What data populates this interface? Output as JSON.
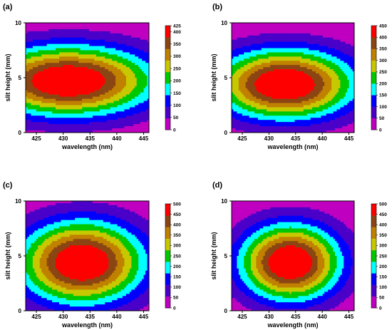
{
  "figure": {
    "panels": [
      {
        "label": "(a)",
        "color_max": 425,
        "color_ticks": [
          0,
          50,
          100,
          150,
          200,
          250,
          300,
          350,
          400,
          425
        ]
      },
      {
        "label": "(b)",
        "color_max": 450,
        "color_ticks": [
          0,
          50,
          100,
          150,
          200,
          250,
          300,
          350,
          400,
          450
        ]
      },
      {
        "label": "(c)",
        "color_max": 500,
        "color_ticks": [
          0,
          50,
          100,
          150,
          200,
          250,
          300,
          350,
          400,
          450,
          500
        ]
      },
      {
        "label": "(d)",
        "color_max": 500,
        "color_ticks": [
          0,
          50,
          100,
          150,
          200,
          250,
          300,
          350,
          400,
          450,
          500
        ]
      }
    ]
  },
  "chart_data": [
    {
      "type": "heatmap",
      "panel": "(a)",
      "xlabel": "wavelength (nm)",
      "ylabel": "slit height (mm)",
      "x_ticks": [
        425,
        430,
        435,
        440,
        445
      ],
      "y_ticks": [
        0,
        5,
        10
      ],
      "xlim": [
        423,
        446
      ],
      "ylim": [
        0,
        10
      ],
      "colorbar_ticks": [
        0,
        50,
        100,
        150,
        200,
        250,
        300,
        350,
        400,
        425
      ],
      "colorbar_range": [
        0,
        425
      ],
      "colors": [
        "#c000c0",
        "#4a00c8",
        "#0000ff",
        "#00ffff",
        "#00c800",
        "#c8c800",
        "#c08000",
        "#8b4513",
        "#ff0000"
      ],
      "peak": {
        "wavelength_nm": 431,
        "slit_height_mm": 4.7,
        "value": 425
      },
      "spread": {
        "wavelength_nm": 11,
        "slit_height_mm": 2.2
      }
    },
    {
      "type": "heatmap",
      "panel": "(b)",
      "xlabel": "wavelength (nm)",
      "ylabel": "slit height (mm)",
      "x_ticks": [
        425,
        430,
        435,
        440,
        445
      ],
      "y_ticks": [
        0,
        5,
        10
      ],
      "xlim": [
        423,
        446
      ],
      "ylim": [
        0,
        10
      ],
      "colorbar_ticks": [
        0,
        50,
        100,
        150,
        200,
        250,
        300,
        350,
        400,
        450
      ],
      "colorbar_range": [
        0,
        450
      ],
      "colors": [
        "#c000c0",
        "#4a00c8",
        "#0000ff",
        "#00ffff",
        "#00c800",
        "#c8c800",
        "#c08000",
        "#8b4513",
        "#ff0000"
      ],
      "peak": {
        "wavelength_nm": 433,
        "slit_height_mm": 4.4,
        "value": 450
      },
      "spread": {
        "wavelength_nm": 9,
        "slit_height_mm": 2.2
      }
    },
    {
      "type": "heatmap",
      "panel": "(c)",
      "xlabel": "wavelength (nm)",
      "ylabel": "slit height (mm)",
      "x_ticks": [
        425,
        430,
        435,
        440,
        445
      ],
      "y_ticks": [
        0,
        5,
        10
      ],
      "xlim": [
        423,
        446
      ],
      "ylim": [
        0,
        10
      ],
      "colorbar_ticks": [
        0,
        50,
        100,
        150,
        200,
        250,
        300,
        350,
        400,
        450,
        500
      ],
      "colorbar_range": [
        0,
        500
      ],
      "colors": [
        "#c000c0",
        "#4a00c8",
        "#0000ff",
        "#00ffff",
        "#00c800",
        "#c8c800",
        "#c08000",
        "#8b4513",
        "#ff0000"
      ],
      "peak": {
        "wavelength_nm": 433.5,
        "slit_height_mm": 4.4,
        "value": 500
      },
      "spread": {
        "wavelength_nm": 8,
        "slit_height_mm": 2.6
      }
    },
    {
      "type": "heatmap",
      "panel": "(d)",
      "xlabel": "wavelength (nm)",
      "ylabel": "slit height (mm)",
      "x_ticks": [
        425,
        430,
        435,
        440,
        445
      ],
      "y_ticks": [
        0,
        5,
        10
      ],
      "xlim": [
        423,
        446
      ],
      "ylim": [
        0,
        10
      ],
      "colorbar_ticks": [
        0,
        50,
        100,
        150,
        200,
        250,
        300,
        350,
        400,
        450,
        500
      ],
      "colorbar_range": [
        0,
        500
      ],
      "colors": [
        "#c000c0",
        "#4a00c8",
        "#0000ff",
        "#00ffff",
        "#00c800",
        "#c8c800",
        "#c08000",
        "#8b4513",
        "#ff0000"
      ],
      "peak": {
        "wavelength_nm": 434,
        "slit_height_mm": 4.4,
        "value": 500
      },
      "spread": {
        "wavelength_nm": 6.5,
        "slit_height_mm": 2.4
      }
    }
  ]
}
